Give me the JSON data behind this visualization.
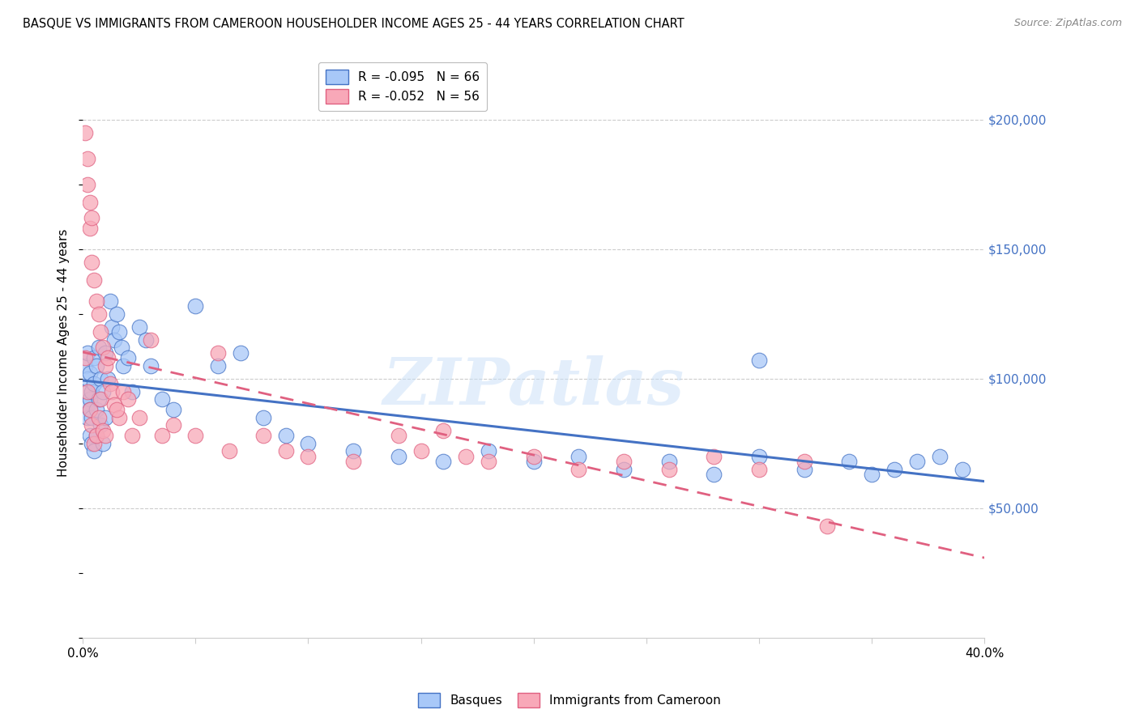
{
  "title": "BASQUE VS IMMIGRANTS FROM CAMEROON HOUSEHOLDER INCOME AGES 25 - 44 YEARS CORRELATION CHART",
  "source": "Source: ZipAtlas.com",
  "ylabel": "Householder Income Ages 25 - 44 years",
  "legend1_label": "R = -0.095   N = 66",
  "legend2_label": "R = -0.052   N = 56",
  "legend1_group": "Basques",
  "legend2_group": "Immigrants from Cameroon",
  "watermark": "ZIPatlas",
  "xlim": [
    0.0,
    0.4
  ],
  "ylim": [
    0,
    220000
  ],
  "yticks": [
    50000,
    100000,
    150000,
    200000
  ],
  "ytick_labels": [
    "$50,000",
    "$100,000",
    "$150,000",
    "$200,000"
  ],
  "xticks": [
    0.0,
    0.05,
    0.1,
    0.15,
    0.2,
    0.25,
    0.3,
    0.35,
    0.4
  ],
  "xtick_labels": [
    "0.0%",
    "",
    "",
    "",
    "",
    "",
    "",
    "",
    "40.0%"
  ],
  "color_blue": "#a8c8f8",
  "color_pink": "#f8a8b8",
  "line_blue": "#4472c4",
  "line_pink": "#e06080",
  "basque_x": [
    0.001,
    0.001,
    0.002,
    0.002,
    0.002,
    0.002,
    0.003,
    0.003,
    0.003,
    0.003,
    0.004,
    0.004,
    0.004,
    0.005,
    0.005,
    0.005,
    0.006,
    0.006,
    0.006,
    0.007,
    0.007,
    0.008,
    0.008,
    0.009,
    0.009,
    0.01,
    0.01,
    0.011,
    0.012,
    0.013,
    0.014,
    0.015,
    0.016,
    0.017,
    0.018,
    0.02,
    0.022,
    0.025,
    0.028,
    0.03,
    0.035,
    0.04,
    0.05,
    0.06,
    0.07,
    0.08,
    0.09,
    0.1,
    0.12,
    0.14,
    0.16,
    0.18,
    0.2,
    0.22,
    0.24,
    0.26,
    0.28,
    0.3,
    0.32,
    0.34,
    0.35,
    0.36,
    0.37,
    0.38,
    0.39,
    0.3
  ],
  "basque_y": [
    105000,
    95000,
    100000,
    90000,
    110000,
    85000,
    92000,
    88000,
    102000,
    78000,
    95000,
    85000,
    75000,
    108000,
    98000,
    72000,
    105000,
    88000,
    78000,
    112000,
    92000,
    100000,
    82000,
    95000,
    75000,
    110000,
    85000,
    100000,
    130000,
    120000,
    115000,
    125000,
    118000,
    112000,
    105000,
    108000,
    95000,
    120000,
    115000,
    105000,
    92000,
    88000,
    128000,
    105000,
    110000,
    85000,
    78000,
    75000,
    72000,
    70000,
    68000,
    72000,
    68000,
    70000,
    65000,
    68000,
    63000,
    70000,
    65000,
    68000,
    63000,
    65000,
    68000,
    70000,
    65000,
    107000
  ],
  "cameroon_x": [
    0.001,
    0.001,
    0.002,
    0.002,
    0.002,
    0.003,
    0.003,
    0.003,
    0.004,
    0.004,
    0.004,
    0.005,
    0.005,
    0.006,
    0.006,
    0.007,
    0.007,
    0.008,
    0.008,
    0.009,
    0.009,
    0.01,
    0.01,
    0.011,
    0.012,
    0.013,
    0.014,
    0.016,
    0.018,
    0.02,
    0.025,
    0.03,
    0.035,
    0.04,
    0.05,
    0.06,
    0.065,
    0.08,
    0.09,
    0.1,
    0.12,
    0.14,
    0.15,
    0.16,
    0.17,
    0.18,
    0.2,
    0.22,
    0.24,
    0.26,
    0.28,
    0.3,
    0.32,
    0.33,
    0.015,
    0.022
  ],
  "cameroon_y": [
    195000,
    108000,
    185000,
    175000,
    95000,
    168000,
    158000,
    88000,
    162000,
    145000,
    82000,
    138000,
    75000,
    130000,
    78000,
    125000,
    85000,
    118000,
    92000,
    112000,
    80000,
    105000,
    78000,
    108000,
    98000,
    95000,
    90000,
    85000,
    95000,
    92000,
    85000,
    115000,
    78000,
    82000,
    78000,
    110000,
    72000,
    78000,
    72000,
    70000,
    68000,
    78000,
    72000,
    80000,
    70000,
    68000,
    70000,
    65000,
    68000,
    65000,
    70000,
    65000,
    68000,
    43000,
    88000,
    78000
  ]
}
